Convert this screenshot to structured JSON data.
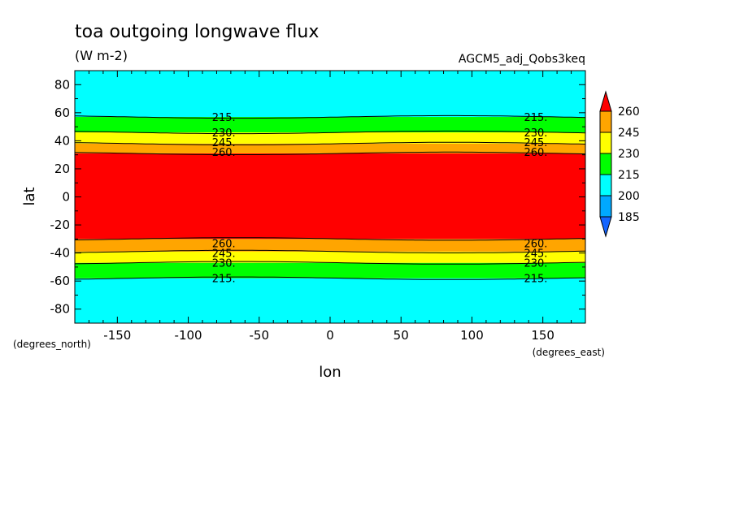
{
  "chart_data": {
    "type": "heatmap",
    "title": "toa outgoing longwave flux",
    "units": "(W m-2)",
    "dataset": "AGCM5_adj_Qobs3keq",
    "xlabel": "lon",
    "ylabel": "lat",
    "x_units": "(degrees_east)",
    "y_units": "(degrees_north)",
    "xlim": [
      -180,
      180
    ],
    "ylim": [
      -90,
      90
    ],
    "xticks": [
      -150,
      -100,
      -50,
      0,
      50,
      100,
      150
    ],
    "xtick_labels": [
      "-150",
      "-100",
      "-50",
      "0",
      "50",
      "100",
      "150"
    ],
    "yticks": [
      80,
      60,
      40,
      20,
      0,
      -20,
      -40,
      -60,
      -80
    ],
    "ytick_labels": [
      "80",
      "60",
      "40",
      "20",
      "0",
      "-20",
      "-40",
      "-60",
      "-80"
    ],
    "colorbar": {
      "levels": [
        185,
        200,
        215,
        230,
        245,
        260
      ],
      "labels": [
        "260",
        "245",
        "230",
        "215",
        "200",
        "185"
      ],
      "colors": [
        "#1565ff",
        "#00a8ff",
        "#00ffff",
        "#00ff00",
        "#ffff00",
        "#ffa500",
        "#ff0000"
      ]
    },
    "contour_lines": {
      "north": {
        "215": 57,
        "230": 46,
        "245": 38,
        "260": 31
      },
      "south": {
        "215": -58,
        "230": -47,
        "245": -39,
        "260": -30
      }
    },
    "bands": [
      {
        "from": -90,
        "to": -58,
        "color": "#00ffff"
      },
      {
        "from": -58,
        "to": -47,
        "color": "#00ff00"
      },
      {
        "from": -47,
        "to": -39,
        "color": "#ffff00"
      },
      {
        "from": -39,
        "to": -30,
        "color": "#ffa500"
      },
      {
        "from": -30,
        "to": 31,
        "color": "#ff0000"
      },
      {
        "from": 31,
        "to": 38,
        "color": "#ffa500"
      },
      {
        "from": 38,
        "to": 46,
        "color": "#ffff00"
      },
      {
        "from": 46,
        "to": 57,
        "color": "#00ff00"
      },
      {
        "from": 57,
        "to": 90,
        "color": "#00ffff"
      }
    ],
    "line_labels": [
      {
        "text": "215.",
        "lon": -75,
        "lat": 57
      },
      {
        "text": "230.",
        "lon": -75,
        "lat": 46
      },
      {
        "text": "245.",
        "lon": -75,
        "lat": 39
      },
      {
        "text": "260.",
        "lon": -75,
        "lat": 32
      },
      {
        "text": "215.",
        "lon": 145,
        "lat": 57
      },
      {
        "text": "230.",
        "lon": 145,
        "lat": 46
      },
      {
        "text": "245.",
        "lon": 145,
        "lat": 39
      },
      {
        "text": "260.",
        "lon": 145,
        "lat": 32
      },
      {
        "text": "260.",
        "lon": -75,
        "lat": -33
      },
      {
        "text": "245.",
        "lon": -75,
        "lat": -40
      },
      {
        "text": "230.",
        "lon": -75,
        "lat": -47
      },
      {
        "text": "215.",
        "lon": -75,
        "lat": -58
      },
      {
        "text": "260.",
        "lon": 145,
        "lat": -33
      },
      {
        "text": "245.",
        "lon": 145,
        "lat": -40
      },
      {
        "text": "230.",
        "lon": 145,
        "lat": -47
      },
      {
        "text": "215.",
        "lon": 145,
        "lat": -58
      }
    ]
  }
}
